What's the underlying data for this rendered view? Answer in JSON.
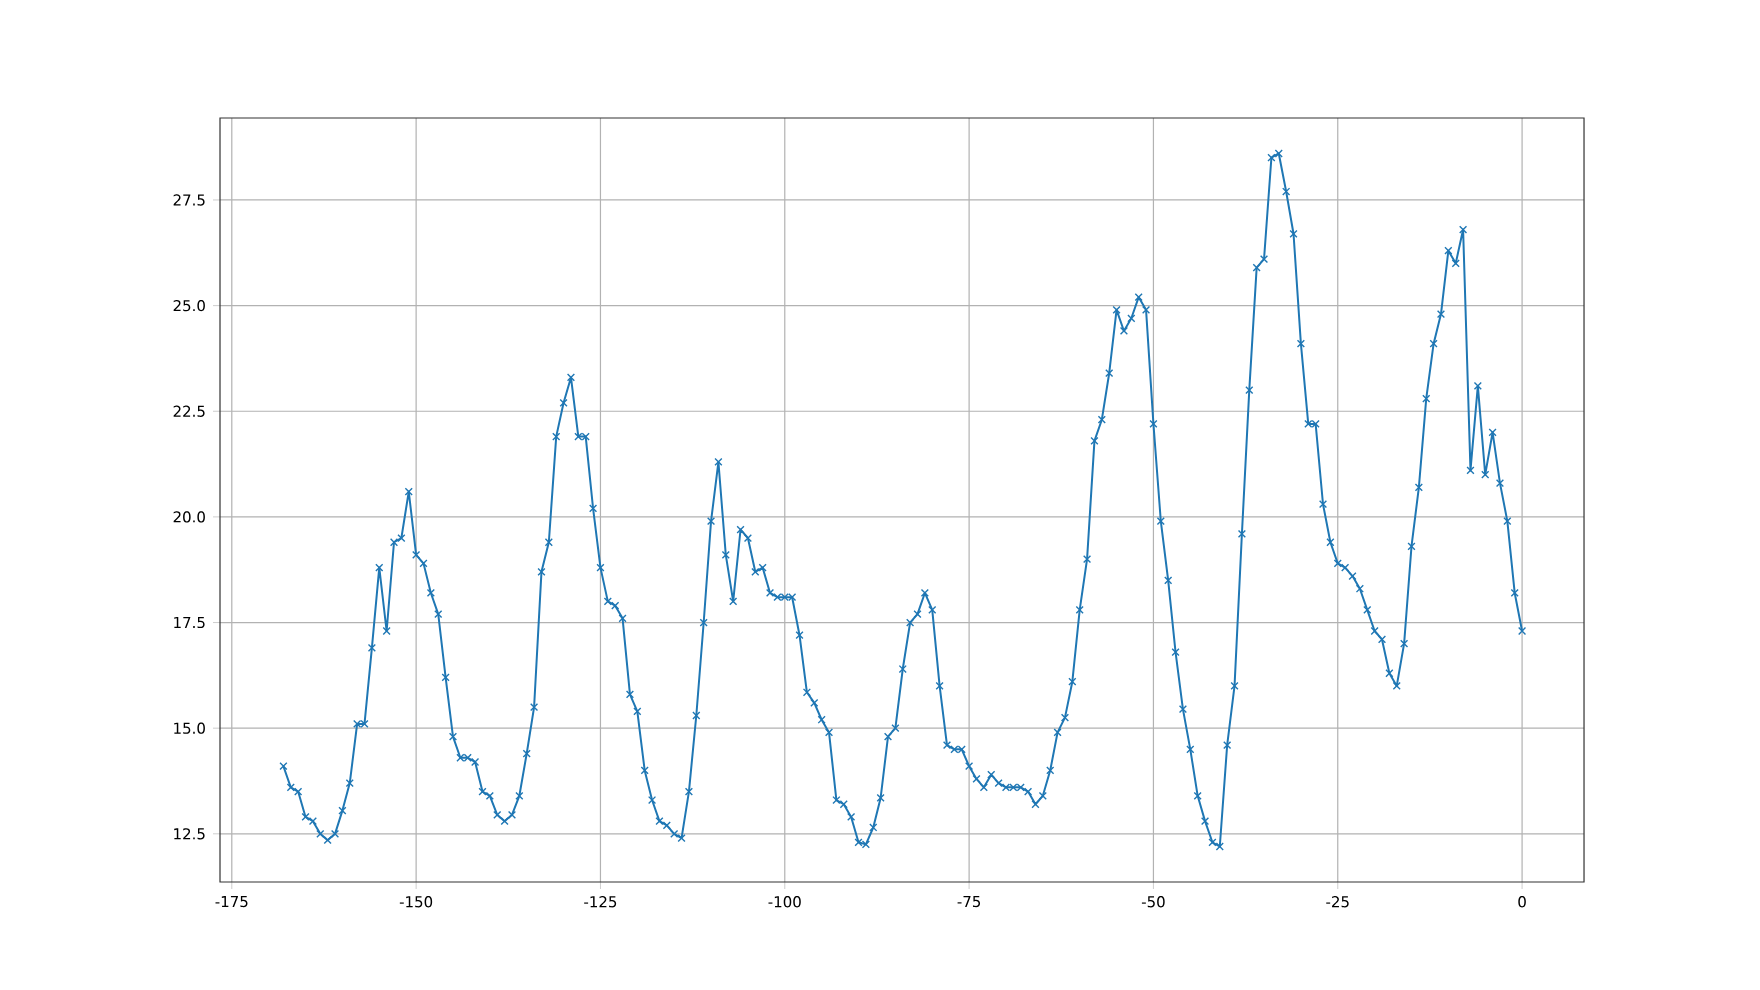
{
  "chart_data": {
    "type": "line",
    "x": [
      -168,
      -167,
      -166,
      -165,
      -164,
      -163,
      -162,
      -161,
      -160,
      -159,
      -158,
      -157,
      -156,
      -155,
      -154,
      -153,
      -152,
      -151,
      -150,
      -149,
      -148,
      -147,
      -146,
      -145,
      -144,
      -143,
      -142,
      -141,
      -140,
      -139,
      -138,
      -137,
      -136,
      -135,
      -134,
      -133,
      -132,
      -131,
      -130,
      -129,
      -128,
      -127,
      -126,
      -125,
      -124,
      -123,
      -122,
      -121,
      -120,
      -119,
      -118,
      -117,
      -116,
      -115,
      -114,
      -113,
      -112,
      -111,
      -110,
      -109,
      -108,
      -107,
      -106,
      -105,
      -104,
      -103,
      -102,
      -101,
      -100,
      -99,
      -98,
      -97,
      -96,
      -95,
      -94,
      -93,
      -92,
      -91,
      -90,
      -89,
      -88,
      -87,
      -86,
      -85,
      -84,
      -83,
      -82,
      -81,
      -80,
      -79,
      -78,
      -77,
      -76,
      -75,
      -74,
      -73,
      -72,
      -71,
      -70,
      -69,
      -68,
      -67,
      -66,
      -65,
      -64,
      -63,
      -62,
      -61,
      -60,
      -59,
      -58,
      -57,
      -56,
      -55,
      -54,
      -53,
      -52,
      -51,
      -50,
      -49,
      -48,
      -47,
      -46,
      -45,
      -44,
      -43,
      -42,
      -41,
      -40,
      -39,
      -38,
      -37,
      -36,
      -35,
      -34,
      -33,
      -32,
      -31,
      -30,
      -29,
      -28,
      -27,
      -26,
      -25,
      -24,
      -23,
      -22,
      -21,
      -20,
      -19,
      -18,
      -17,
      -16,
      -15,
      -14,
      -13,
      -12,
      -11,
      -10,
      -9,
      -8,
      -7,
      -6,
      -5,
      -4,
      -3,
      -2,
      -1,
      0
    ],
    "series": [
      {
        "color": "#1f77b4",
        "values": [
          14.1,
          13.6,
          13.5,
          12.9,
          12.8,
          12.5,
          12.35,
          12.5,
          13.05,
          13.7,
          15.1,
          15.1,
          16.9,
          18.8,
          17.3,
          19.4,
          19.5,
          20.6,
          19.1,
          18.9,
          18.2,
          17.7,
          16.2,
          14.8,
          14.3,
          14.3,
          14.2,
          13.5,
          13.4,
          12.95,
          12.8,
          12.95,
          13.4,
          14.4,
          15.5,
          18.7,
          19.4,
          21.9,
          22.7,
          23.3,
          21.9,
          21.9,
          20.2,
          18.8,
          18.0,
          17.9,
          17.6,
          15.8,
          15.4,
          14.0,
          13.3,
          12.8,
          12.7,
          12.5,
          12.4,
          13.5,
          15.3,
          17.5,
          19.9,
          21.3,
          19.1,
          18.0,
          19.7,
          19.5,
          18.7,
          18.8,
          18.2,
          18.1,
          18.1,
          18.1,
          17.2,
          15.85,
          15.6,
          15.2,
          14.9,
          13.3,
          13.2,
          12.9,
          12.3,
          12.25,
          12.65,
          13.35,
          14.8,
          15.0,
          16.4,
          17.5,
          17.7,
          18.2,
          17.8,
          16.0,
          14.6,
          14.5,
          14.5,
          14.1,
          13.8,
          13.6,
          13.9,
          13.7,
          13.6,
          13.6,
          13.6,
          13.5,
          13.2,
          13.4,
          14.0,
          14.9,
          15.25,
          16.1,
          17.8,
          19.0,
          21.8,
          22.3,
          23.4,
          24.9,
          24.4,
          24.7,
          25.2,
          24.9,
          22.2,
          19.9,
          18.5,
          16.8,
          15.45,
          14.5,
          13.4,
          12.8,
          12.3,
          12.2,
          14.6,
          16.0,
          19.6,
          23.0,
          25.9,
          26.1,
          28.5,
          28.6,
          27.7,
          26.7,
          24.1,
          22.2,
          22.2,
          20.3,
          19.4,
          18.9,
          18.8,
          18.6,
          18.3,
          17.8,
          17.3,
          17.1,
          16.3,
          16.0,
          17.0,
          19.3,
          20.7,
          22.8,
          24.1,
          24.8,
          26.3,
          26.0,
          26.8,
          21.1,
          23.1,
          21.0,
          22.0,
          20.8,
          19.9,
          18.2,
          17.3
        ]
      }
    ],
    "xlim": [
      -176.6,
      8.4
    ],
    "ylim": [
      11.36,
      29.44
    ],
    "xticks": [
      -175,
      -150,
      -125,
      -100,
      -75,
      -50,
      -25,
      0
    ],
    "yticks": [
      {
        "value": 12.5,
        "label": "12.5"
      },
      {
        "value": 15,
        "label": "15.0"
      },
      {
        "value": 17.5,
        "label": "17.5"
      },
      {
        "value": 20,
        "label": "20.0"
      },
      {
        "value": 22.5,
        "label": "22.5"
      },
      {
        "value": 25,
        "label": "25.0"
      },
      {
        "value": 27.5,
        "label": "27.5"
      }
    ],
    "grid": true,
    "marker": "cross",
    "line_style": "solid"
  }
}
